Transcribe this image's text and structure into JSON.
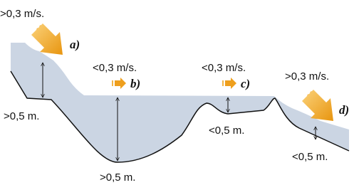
{
  "zones": [
    {
      "letter": "a)",
      "speed": ">0,3 m/s.",
      "depth": ">0,5 m."
    },
    {
      "letter": "b)",
      "speed": "<0,3 m/s.",
      "depth": ">0,5 m."
    },
    {
      "letter": "c)",
      "speed": "<0,3 m/s.",
      "depth": "<0,5 m."
    },
    {
      "letter": "d)",
      "speed": ">0,3 m/s.",
      "depth": "<0,5 m."
    }
  ]
}
